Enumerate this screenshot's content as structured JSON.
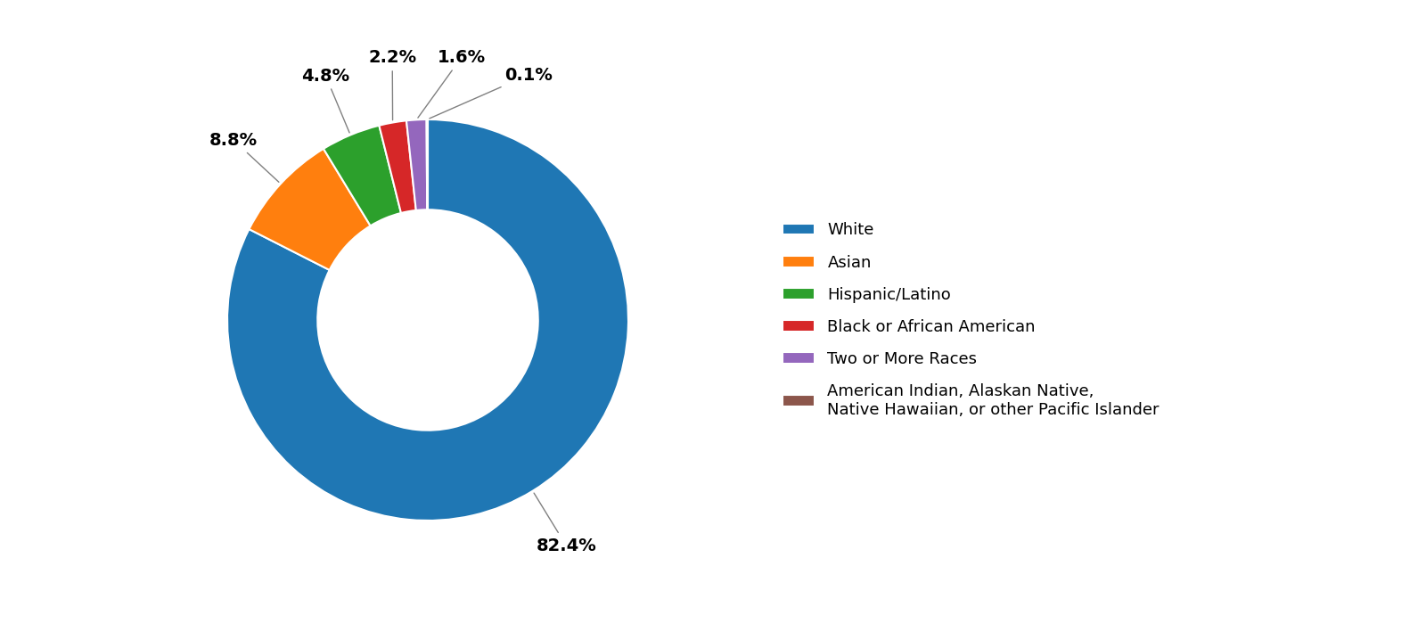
{
  "chart_data": {
    "type": "doughnut",
    "categories": [
      "White",
      "Asian",
      "Hispanic/Latino",
      "Black or African American",
      "Two or More Races",
      "American Indian, Alaskan Native,\nNative Hawaiian, or other Pacific Islander"
    ],
    "values": [
      82.4,
      8.8,
      4.8,
      2.2,
      1.6,
      0.1
    ],
    "value_labels": [
      "82.4%",
      "8.8%",
      "4.8%",
      "2.2%",
      "1.6%",
      "0.1%"
    ],
    "data_labels": true,
    "legend": "center left"
  }
}
